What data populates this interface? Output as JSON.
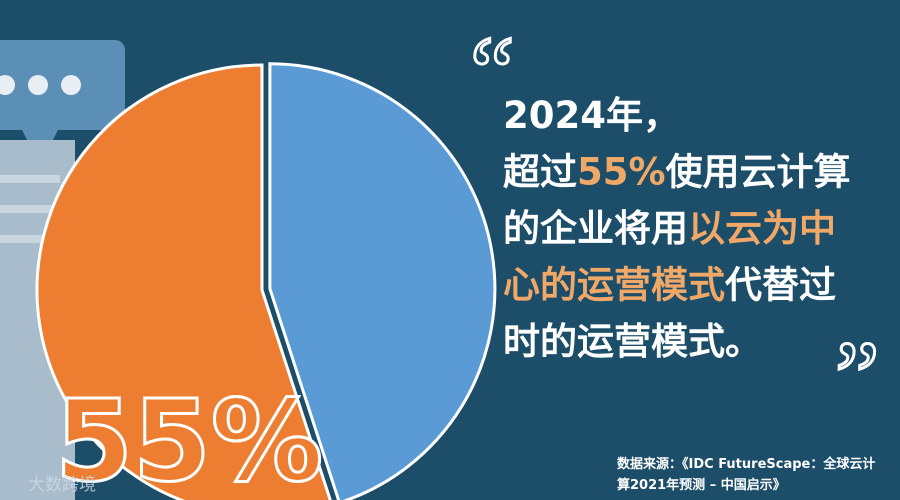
{
  "chart_data": {
    "type": "pie",
    "values": [
      45,
      55
    ],
    "colors": [
      "#5b9bd5",
      "#ed7d31"
    ],
    "value_labels": [
      null,
      "55%"
    ],
    "start_angle": 0,
    "direction": "clockwise"
  },
  "quote_open": "“",
  "quote_close": "”",
  "headline": [
    [
      {
        "text": "2024年，",
        "color": "#ffffff"
      }
    ],
    [
      {
        "text": "超过",
        "color": "#ffffff"
      },
      {
        "text": "55%",
        "color": "#f0a868"
      },
      {
        "text": "使用云计算",
        "color": "#ffffff"
      }
    ],
    [
      {
        "text": "的企业将用",
        "color": "#ffffff"
      },
      {
        "text": "以云为中",
        "color": "#f0a868"
      }
    ],
    [
      {
        "text": "心的运营模式",
        "color": "#f0a868"
      },
      {
        "text": "代替过",
        "color": "#ffffff"
      }
    ],
    [
      {
        "text": "时的运营模式。",
        "color": "#ffffff"
      }
    ]
  ],
  "source": [
    "数据来源：《IDC FutureScape：全球云计",
    "算2021年预测 – 中国启示》"
  ],
  "watermark": "大数跨境"
}
